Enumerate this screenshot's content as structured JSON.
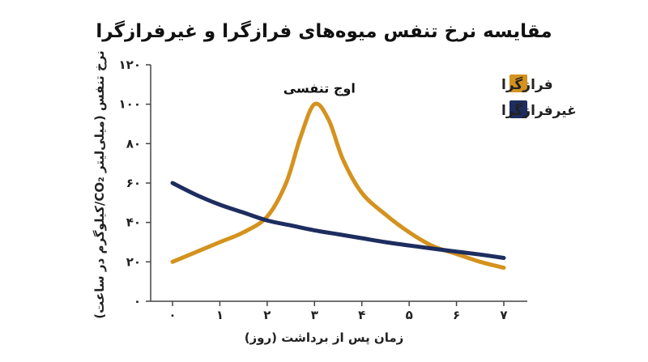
{
  "chart_data": {
    "type": "line",
    "title": "مقایسه نرخ تنفس میوه‌های فرازگرا و غیرفرازگرا",
    "xlabel": "زمان پس از برداشت (روز)",
    "ylabel": "نرخ تنفس (میلی‌لیتر CO₂/کیلوگرم در ساعت)",
    "xlim": [
      0,
      7
    ],
    "ylim": [
      0,
      120
    ],
    "x_ticks": [
      0,
      1,
      2,
      3,
      4,
      5,
      6,
      7
    ],
    "x_tick_labels": [
      "۰",
      "۱",
      "۲",
      "۳",
      "۴",
      "۵",
      "۶",
      "۷"
    ],
    "y_ticks": [
      0,
      20,
      40,
      60,
      80,
      100,
      120
    ],
    "y_tick_labels": [
      "۰",
      "۲۰",
      "۴۰",
      "۶۰",
      "۸۰",
      "۱۰۰",
      "۱۲۰"
    ],
    "grid": false,
    "legend": "top-right",
    "series": [
      {
        "name": "فرازگرا",
        "color": "#D4921E",
        "x": [
          0,
          0.5,
          1,
          1.5,
          2,
          2.4,
          2.7,
          3,
          3.3,
          3.6,
          4,
          4.5,
          5,
          5.5,
          6,
          6.5,
          7
        ],
        "y": [
          20,
          25,
          30,
          35,
          43,
          60,
          83,
          100,
          92,
          72,
          55,
          44,
          35,
          28,
          24,
          20,
          17
        ]
      },
      {
        "name": "غیرفرازگرا",
        "color": "#1E2D5F",
        "x": [
          0,
          0.5,
          1,
          1.5,
          2,
          2.5,
          3,
          3.5,
          4,
          4.5,
          5,
          5.5,
          6,
          6.5,
          7
        ],
        "y": [
          60,
          54,
          49,
          45,
          41,
          38.5,
          36,
          34,
          32,
          30,
          28.3,
          26.7,
          25.2,
          23.7,
          22
        ]
      }
    ],
    "annotations": [
      {
        "text": "اوج تنفسی",
        "x": 3,
        "y": 100
      }
    ]
  }
}
